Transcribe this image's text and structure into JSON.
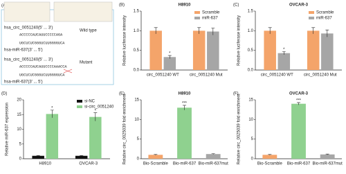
{
  "diagram": {
    "panel": "(A)",
    "wild": {
      "circ": "hsa_circ_0051240(5' ... 3')",
      "circ_seq": "ACCCCCAUCAUUCCCCCAGA",
      "mir_seq": "UGCUCUCGGGUCUUGGGGUCA",
      "mir": "hsa-miR-637(3' ... 5')",
      "label": "Wild type"
    },
    "mutant": {
      "circ": "hsa_circ_0051240(5' ... 3')",
      "circ_seq": "ACCCCCAUCAUUCCCCAAACCA",
      "mir_seq": "UGCUCUCGGGUCUUGGGGUCA",
      "mir": "hsa-miR-637(3' ... 5')",
      "label": "Mutant"
    }
  },
  "chart_data": [
    {
      "type": "bar",
      "panel": "(B)",
      "title": "H8910",
      "ylabel": "Relative luciferase intensity",
      "categories": [
        "circ_0051240 WT",
        "circ_0051240 Mut"
      ],
      "series": [
        {
          "name": "Scramble",
          "color": "#f4a46a",
          "values": [
            1.0,
            1.0
          ],
          "errors": [
            0.08,
            0.08
          ]
        },
        {
          "name": "miR-637",
          "color": "#a6a6a6",
          "values": [
            0.33,
            0.98
          ],
          "errors": [
            0.04,
            0.09
          ],
          "significance": [
            "*",
            null
          ]
        }
      ],
      "ylim": [
        0,
        1.5
      ],
      "yticks": [
        {
          "value": 0,
          "label": "0.0"
        },
        {
          "value": 0.5,
          "label": "0.5"
        },
        {
          "value": 1,
          "label": "1.0"
        },
        {
          "value": 1.5,
          "label": "1.5"
        }
      ]
    },
    {
      "type": "bar",
      "panel": "(C)",
      "title": "OVCAR-3",
      "ylabel": "Relative luciferase intensity",
      "categories": [
        "circ_0051240 WT",
        "circ_0051240 Mut"
      ],
      "series": [
        {
          "name": "Scramble",
          "color": "#f4a46a",
          "values": [
            1.0,
            1.0
          ],
          "errors": [
            0.08,
            0.08
          ]
        },
        {
          "name": "miR-637",
          "color": "#a6a6a6",
          "values": [
            0.43,
            0.93
          ],
          "errors": [
            0.04,
            0.09
          ],
          "significance": [
            "*",
            null
          ]
        }
      ],
      "ylim": [
        0,
        1.5
      ],
      "yticks": [
        {
          "value": 0,
          "label": "0.0"
        },
        {
          "value": 0.5,
          "label": "0.5"
        },
        {
          "value": 1,
          "label": "1.0"
        },
        {
          "value": 1.5,
          "label": "1.5"
        }
      ]
    },
    {
      "type": "bar",
      "panel": "(D)",
      "ylabel": "Relative miR-637 expression",
      "categories": [
        "H8910",
        "OVCAR-3"
      ],
      "series": [
        {
          "name": "si-NC",
          "color": "#111111",
          "values": [
            1.0,
            1.0
          ],
          "errors": [
            0.1,
            0.1
          ]
        },
        {
          "name": "si-circ_0051240",
          "color": "#8fd18f",
          "values": [
            15.2,
            14.2
          ],
          "errors": [
            1.3,
            1.4
          ],
          "significance": [
            "*",
            "*"
          ]
        }
      ],
      "ylim": [
        0,
        20
      ],
      "yticks": [
        0,
        5,
        10,
        15,
        20
      ]
    },
    {
      "type": "bar",
      "panel": "(E)",
      "title": "H8910",
      "ylabel": "Relative circ_0025039 fold enrichment",
      "categories": [
        "Bio-Scramble",
        "Bio-miR-637",
        "Bio-miR-637mut"
      ],
      "series": [
        {
          "colors": [
            "#f4a46a",
            "#8fd18f",
            "#a6a6a6"
          ],
          "values": [
            1.0,
            13.0,
            1.2
          ],
          "errors": [
            0.1,
            0.6,
            0.1
          ],
          "significance": [
            null,
            "***",
            null
          ]
        }
      ],
      "ylim": [
        0,
        15
      ],
      "yticks": [
        0,
        5,
        10,
        15
      ]
    },
    {
      "type": "bar",
      "panel": "(F)",
      "title": "OVCAR-3",
      "ylabel": "Relative circ_0025039 fold enrichment",
      "categories": [
        "Bio-Scramble",
        "Bio-miR-637",
        "Bio-miR-637mut"
      ],
      "series": [
        {
          "colors": [
            "#f4a46a",
            "#8fd18f",
            "#a6a6a6"
          ],
          "values": [
            1.0,
            14.0,
            1.1
          ],
          "errors": [
            0.1,
            0.3,
            0.1
          ],
          "significance": [
            null,
            "***",
            null
          ]
        }
      ],
      "ylim": [
        0,
        15
      ],
      "yticks": [
        0,
        5,
        10,
        15
      ]
    }
  ]
}
